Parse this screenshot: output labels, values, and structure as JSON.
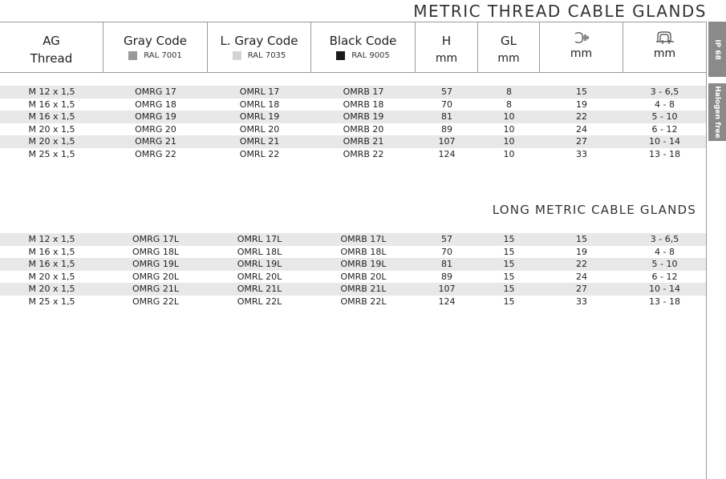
{
  "title": "METRIC THREAD CABLE GLANDS",
  "title2": "LONG METRIC CABLE GLANDS",
  "columns": [
    {
      "main": "AG",
      "sub": "Thread"
    },
    {
      "main": "Gray Code",
      "ral": "RAL 7001",
      "swatch": "#999999"
    },
    {
      "main": "L. Gray Code",
      "ral": "RAL 7035",
      "swatch": "#d4d4d4"
    },
    {
      "main": "Black Code",
      "ral": "RAL 9005",
      "swatch": "#1a1a1a"
    },
    {
      "main": "H",
      "sub": "mm"
    },
    {
      "main": "GL",
      "sub": "mm"
    },
    {
      "icon": "wrench-icon",
      "sub": "mm"
    },
    {
      "icon": "cable-clamp-icon",
      "sub": "mm"
    }
  ],
  "side_tabs": [
    "IP 68",
    "Halogen free"
  ],
  "table1": [
    [
      "M 12 x 1,5",
      "OMRG 17",
      "OMRL 17",
      "OMRB 17",
      "57",
      "8",
      "15",
      "3 - 6,5"
    ],
    [
      "M 16 x 1,5",
      "OMRG 18",
      "OMRL 18",
      "OMRB 18",
      "70",
      "8",
      "19",
      "4 - 8"
    ],
    [
      "M 16 x 1,5",
      "OMRG 19",
      "OMRL 19",
      "OMRB 19",
      "81",
      "10",
      "22",
      "5 - 10"
    ],
    [
      "M 20 x 1,5",
      "OMRG 20",
      "OMRL 20",
      "OMRB 20",
      "89",
      "10",
      "24",
      "6 - 12"
    ],
    [
      "M 20 x 1,5",
      "OMRG 21",
      "OMRL 21",
      "OMRB 21",
      "107",
      "10",
      "27",
      "10 - 14"
    ],
    [
      "M 25 x 1,5",
      "OMRG 22",
      "OMRL 22",
      "OMRB 22",
      "124",
      "10",
      "33",
      "13 - 18"
    ]
  ],
  "table2": [
    [
      "M 12 x 1,5",
      "OMRG 17L",
      "OMRL 17L",
      "OMRB 17L",
      "57",
      "15",
      "15",
      "3 - 6,5"
    ],
    [
      "M 16 x 1,5",
      "OMRG 18L",
      "OMRL 18L",
      "OMRB 18L",
      "70",
      "15",
      "19",
      "4 - 8"
    ],
    [
      "M 16 x 1,5",
      "OMRG 19L",
      "OMRL 19L",
      "OMRB 19L",
      "81",
      "15",
      "22",
      "5 - 10"
    ],
    [
      "M 20 x 1,5",
      "OMRG 20L",
      "OMRL 20L",
      "OMRB 20L",
      "89",
      "15",
      "24",
      "6 - 12"
    ],
    [
      "M 20 x 1,5",
      "OMRG 21L",
      "OMRL 21L",
      "OMRB 21L",
      "107",
      "15",
      "27",
      "10 - 14"
    ],
    [
      "M 25 x 1,5",
      "OMRG 22L",
      "OMRL 22L",
      "OMRB 22L",
      "124",
      "15",
      "33",
      "13 - 18"
    ]
  ]
}
